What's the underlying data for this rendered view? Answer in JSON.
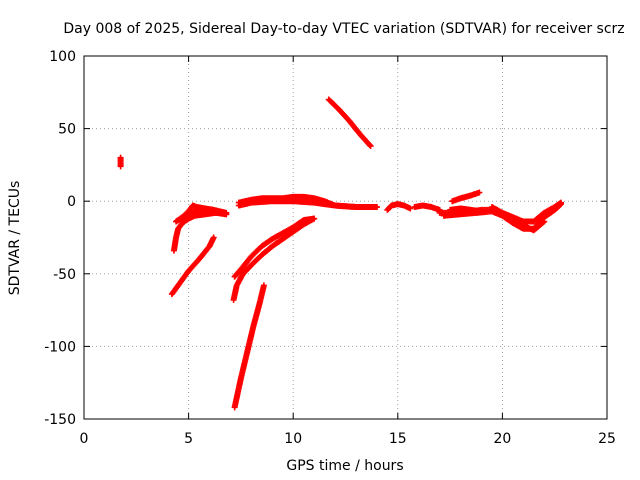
{
  "chart_data": {
    "type": "scatter",
    "title": "Day 008 of 2025, Sidereal Day-to-day VTEC variation (SDTVAR) for receiver scrz",
    "xlabel": "GPS time / hours",
    "ylabel": "SDTVAR / TECUs",
    "xlim": [
      0,
      25
    ],
    "ylim": [
      -150,
      100
    ],
    "xticks": [
      0,
      5,
      10,
      15,
      20,
      25
    ],
    "yticks": [
      -150,
      -100,
      -50,
      0,
      50,
      100
    ],
    "grid": true,
    "marker": "+",
    "color": "#ff0000",
    "segments": [
      [
        [
          1.75,
          30
        ],
        [
          1.75,
          24
        ]
      ],
      [
        [
          4.2,
          -64
        ],
        [
          4.6,
          -56
        ],
        [
          5.0,
          -48
        ],
        [
          5.5,
          -40
        ],
        [
          6.0,
          -31
        ],
        [
          6.2,
          -25
        ]
      ],
      [
        [
          4.3,
          -34
        ],
        [
          4.4,
          -25
        ],
        [
          4.5,
          -19
        ],
        [
          4.7,
          -15
        ],
        [
          5.0,
          -12
        ],
        [
          5.3,
          -10
        ],
        [
          5.8,
          -9
        ],
        [
          6.3,
          -8
        ],
        [
          6.8,
          -9
        ]
      ],
      [
        [
          4.4,
          -14
        ],
        [
          4.7,
          -11
        ],
        [
          5.0,
          -7
        ],
        [
          5.2,
          -3
        ],
        [
          5.4,
          -4
        ],
        [
          5.8,
          -5
        ],
        [
          6.2,
          -6
        ],
        [
          6.8,
          -8
        ]
      ],
      [
        [
          4.7,
          -14
        ],
        [
          5.0,
          -10
        ],
        [
          5.3,
          -7
        ],
        [
          5.7,
          -6
        ],
        [
          6.2,
          -7
        ],
        [
          6.8,
          -9
        ]
      ],
      [
        [
          7.2,
          -142
        ],
        [
          7.5,
          -122
        ],
        [
          7.8,
          -104
        ],
        [
          8.1,
          -86
        ],
        [
          8.4,
          -70
        ],
        [
          8.6,
          -58
        ]
      ],
      [
        [
          7.15,
          -68
        ],
        [
          7.3,
          -58
        ],
        [
          7.6,
          -50
        ],
        [
          8.0,
          -44
        ],
        [
          8.5,
          -37
        ],
        [
          9.0,
          -31
        ],
        [
          9.5,
          -26
        ],
        [
          10.0,
          -21
        ],
        [
          10.5,
          -16
        ],
        [
          11.0,
          -12
        ]
      ],
      [
        [
          7.2,
          -52
        ],
        [
          7.5,
          -47
        ],
        [
          8.0,
          -38
        ],
        [
          8.5,
          -31
        ],
        [
          9.0,
          -26
        ],
        [
          9.5,
          -22
        ],
        [
          10.0,
          -18
        ],
        [
          10.5,
          -13
        ],
        [
          11.0,
          -12
        ]
      ],
      [
        [
          7.4,
          -1
        ],
        [
          8.0,
          1
        ],
        [
          8.5,
          2
        ],
        [
          9.0,
          2
        ],
        [
          9.5,
          2
        ],
        [
          10.0,
          3
        ],
        [
          10.5,
          3
        ],
        [
          11.0,
          2
        ],
        [
          11.5,
          0
        ],
        [
          12.0,
          -3
        ],
        [
          13.0,
          -4
        ],
        [
          14.0,
          -4
        ]
      ],
      [
        [
          7.4,
          -3
        ],
        [
          8.0,
          -1
        ],
        [
          9.0,
          0
        ],
        [
          10.0,
          0
        ],
        [
          11.0,
          -1
        ],
        [
          12.0,
          -3
        ],
        [
          13.0,
          -4
        ],
        [
          14.0,
          -4
        ]
      ],
      [
        [
          11.7,
          70
        ],
        [
          12.2,
          63
        ],
        [
          12.7,
          55
        ],
        [
          13.2,
          46
        ],
        [
          13.7,
          38
        ]
      ],
      [
        [
          14.5,
          -6
        ],
        [
          14.7,
          -3
        ],
        [
          15.0,
          -2
        ],
        [
          15.3,
          -3
        ],
        [
          15.6,
          -5
        ]
      ],
      [
        [
          15.8,
          -4
        ],
        [
          16.2,
          -3
        ],
        [
          16.6,
          -4
        ],
        [
          17.0,
          -6
        ]
      ],
      [
        [
          17.0,
          -8
        ],
        [
          17.5,
          -8
        ],
        [
          18.0,
          -7
        ],
        [
          18.5,
          -7
        ],
        [
          19.0,
          -6
        ],
        [
          19.5,
          -6
        ],
        [
          20.0,
          -8
        ],
        [
          20.5,
          -11
        ],
        [
          21.0,
          -14
        ],
        [
          21.5,
          -14
        ],
        [
          22.0,
          -8
        ],
        [
          22.5,
          -4
        ],
        [
          22.8,
          -1
        ]
      ],
      [
        [
          17.2,
          -10
        ],
        [
          18.0,
          -9
        ],
        [
          18.8,
          -8
        ],
        [
          19.5,
          -7
        ],
        [
          20.0,
          -10
        ],
        [
          20.5,
          -15
        ],
        [
          21.0,
          -19
        ],
        [
          21.5,
          -19
        ],
        [
          22.0,
          -11
        ],
        [
          22.5,
          -6
        ],
        [
          22.8,
          -2
        ]
      ],
      [
        [
          17.5,
          -6
        ],
        [
          18.0,
          -5
        ],
        [
          18.5,
          -6
        ],
        [
          19.0,
          -7
        ]
      ],
      [
        [
          17.6,
          0
        ],
        [
          18.0,
          2
        ],
        [
          18.5,
          4
        ],
        [
          18.9,
          6
        ]
      ],
      [
        [
          19.5,
          -4
        ],
        [
          20.0,
          -8
        ],
        [
          20.5,
          -12
        ],
        [
          21.0,
          -17
        ],
        [
          21.5,
          -20
        ],
        [
          22.0,
          -14
        ]
      ]
    ]
  }
}
